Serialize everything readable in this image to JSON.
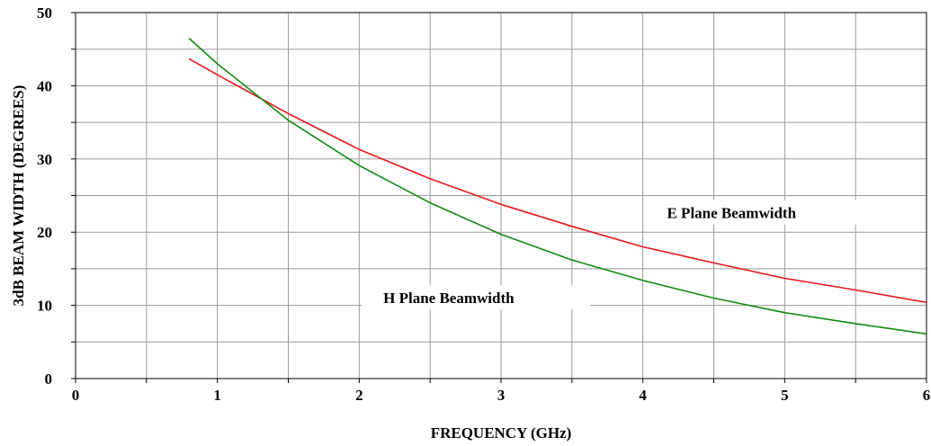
{
  "chart_data": {
    "type": "line",
    "title": "",
    "xlabel": "FREQUENCY (GHz)",
    "ylabel": "3dB BEAM WIDTH (DEGREES)",
    "xlim": [
      0,
      6
    ],
    "ylim": [
      0,
      50
    ],
    "x_ticks": [
      "0",
      "1",
      "2",
      "3",
      "4",
      "5",
      "6"
    ],
    "y_ticks": [
      "0",
      "10",
      "20",
      "30",
      "40",
      "50"
    ],
    "grid": true,
    "series": [
      {
        "name": "E Plane Beamwidth",
        "color": "#e8161b",
        "x": [
          0.8,
          1.0,
          1.5,
          2.0,
          2.5,
          3.0,
          3.5,
          4.0,
          4.5,
          5.0,
          5.5,
          6.0
        ],
        "y": [
          43.7,
          41.5,
          36.2,
          31.3,
          27.3,
          23.8,
          20.8,
          18.0,
          15.8,
          13.7,
          12.1,
          10.4
        ]
      },
      {
        "name": "H Plane Beamwidth",
        "color": "#118a11",
        "x": [
          0.8,
          1.0,
          1.5,
          2.0,
          2.5,
          3.0,
          3.5,
          4.0,
          4.5,
          5.0,
          5.5,
          6.0
        ],
        "y": [
          46.5,
          43.0,
          35.3,
          29.1,
          24.0,
          19.7,
          16.2,
          13.4,
          11.0,
          9.0,
          7.5,
          6.1
        ]
      }
    ],
    "annotations": [
      {
        "text": "E Plane Beamwidth",
        "x": 4.17,
        "y": 21.9
      },
      {
        "text": "H Plane Beamwidth",
        "x": 2.17,
        "y": 10.3
      }
    ]
  }
}
